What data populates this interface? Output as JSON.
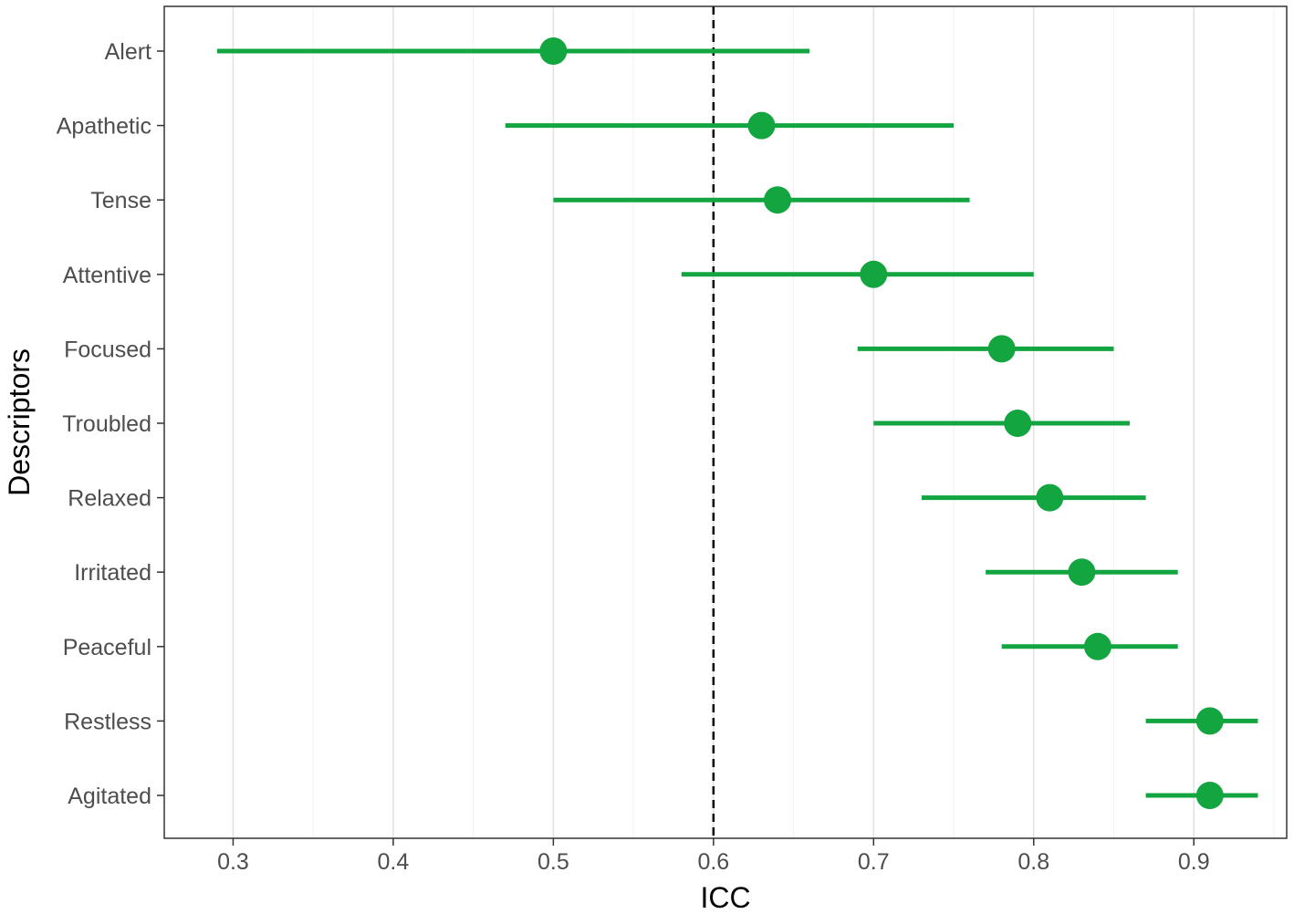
{
  "chart_data": {
    "type": "forest",
    "xlabel": "ICC",
    "ylabel": "Descriptors",
    "xlim": [
      0.257,
      0.958
    ],
    "x_ticks": [
      0.3,
      0.4,
      0.5,
      0.6,
      0.7,
      0.8,
      0.9
    ],
    "x_tick_labels": [
      "0.3",
      "0.4",
      "0.5",
      "0.6",
      "0.7",
      "0.8",
      "0.9"
    ],
    "reference_line": 0.6,
    "grid": true,
    "color": "#13a640",
    "rows": [
      {
        "label": "Alert",
        "estimate": 0.5,
        "lower": 0.29,
        "upper": 0.66
      },
      {
        "label": "Apathetic",
        "estimate": 0.63,
        "lower": 0.47,
        "upper": 0.75
      },
      {
        "label": "Tense",
        "estimate": 0.64,
        "lower": 0.5,
        "upper": 0.76
      },
      {
        "label": "Attentive",
        "estimate": 0.7,
        "lower": 0.58,
        "upper": 0.8
      },
      {
        "label": "Focused",
        "estimate": 0.78,
        "lower": 0.69,
        "upper": 0.85
      },
      {
        "label": "Troubled",
        "estimate": 0.79,
        "lower": 0.7,
        "upper": 0.86
      },
      {
        "label": "Relaxed",
        "estimate": 0.81,
        "lower": 0.73,
        "upper": 0.87
      },
      {
        "label": "Irritated",
        "estimate": 0.83,
        "lower": 0.77,
        "upper": 0.89
      },
      {
        "label": "Peaceful",
        "estimate": 0.84,
        "lower": 0.78,
        "upper": 0.89
      },
      {
        "label": "Restless",
        "estimate": 0.91,
        "lower": 0.87,
        "upper": 0.94
      },
      {
        "label": "Agitated",
        "estimate": 0.91,
        "lower": 0.87,
        "upper": 0.94
      }
    ]
  }
}
